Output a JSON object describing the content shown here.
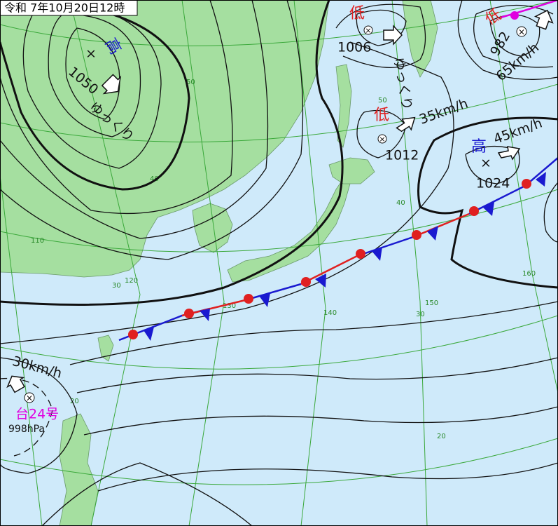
{
  "header": {
    "title": "令和 7年10月20日12時"
  },
  "systems": [
    {
      "kind": "高",
      "pressure": "1050",
      "motion": "ゆっくり"
    },
    {
      "kind": "低",
      "pressure": "1006",
      "motion": "ゆっくり"
    },
    {
      "kind": "低",
      "pressure": "982",
      "motion": "65km/h"
    },
    {
      "kind": "低",
      "pressure": "1012",
      "motion": "35km/h"
    },
    {
      "kind": "高",
      "pressure": "1024",
      "motion": "45km/h"
    },
    {
      "name": "台24号",
      "pressure": "998hPa",
      "motion": "30km/h"
    }
  ],
  "grid_labels": {
    "latitude_west": [
      "50",
      "40",
      "30",
      "20"
    ],
    "latitude_east": [
      "50",
      "40",
      "30",
      "20"
    ],
    "longitude": [
      "110",
      "120",
      "130",
      "140",
      "150",
      "160"
    ]
  }
}
